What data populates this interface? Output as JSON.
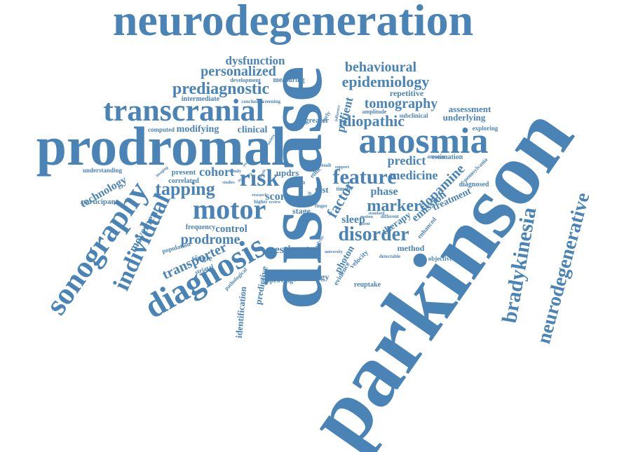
{
  "cloud": {
    "color": "#4a83b5",
    "words": [
      "parkinson",
      "disease",
      "neurodegeneration",
      "prodromal",
      "anosmia",
      "transcranial",
      "diagnosis",
      "sonography",
      "motor",
      "bradykinesia",
      "neurodegenerative",
      "individual",
      "prediagnostic",
      "personalized",
      "dysfunction",
      "behavioural",
      "epidemiology",
      "tomography",
      "feature",
      "idiopathic",
      "risk",
      "tapping",
      "disorder",
      "marker",
      "dopamine",
      "factor",
      "patient",
      "transporter",
      "prodrome",
      "technology",
      "movement",
      "cohort",
      "modifying",
      "clinical",
      "assessment",
      "underlying",
      "repetitive",
      "predict",
      "medicine",
      "phase",
      "treatment",
      "emission",
      "sleep",
      "therapy",
      "estimate",
      "method",
      "photon",
      "control",
      "single",
      "predictive",
      "identification",
      "pathology",
      "improving",
      "score",
      "updrs",
      "present",
      "correlated",
      "participant",
      "understanding",
      "computed",
      "intermediate",
      "development",
      "measuring",
      "greater",
      "estimation",
      "diagnosed",
      "pennsylvania",
      "frequency",
      "population",
      "striatal",
      "pathological",
      "evidence",
      "velocity",
      "reuptake",
      "objective",
      "detectable",
      "exploring",
      "amplitude",
      "subclinical",
      "conclusion",
      "screening",
      "enhanced",
      "stage",
      "test",
      "timely",
      "ratio",
      "ethic",
      "general",
      "benefit",
      "studies",
      "higher",
      "research",
      "difference",
      "different",
      "analysis",
      "university",
      "result",
      "support",
      "standard",
      "motion",
      "finger",
      "review",
      "imaging",
      "family",
      "extent",
      "early",
      "smell",
      "accuracy",
      "basic",
      "society",
      "influence",
      "year"
    ]
  }
}
